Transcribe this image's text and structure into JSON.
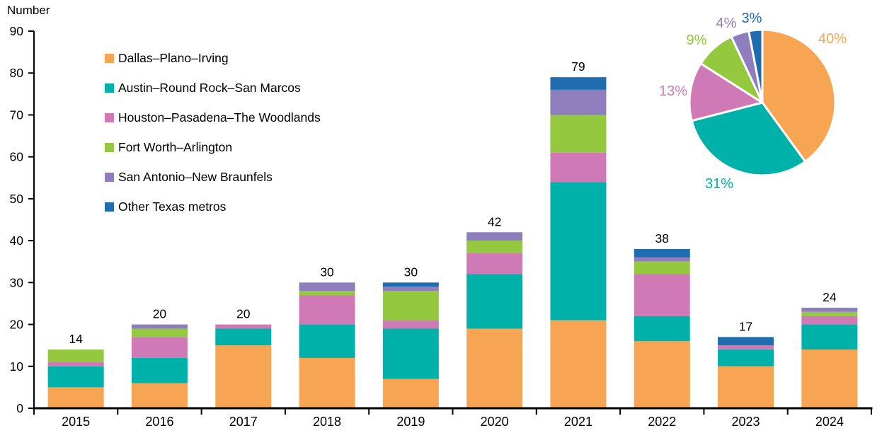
{
  "chart": {
    "y_axis_title": "Number"
  },
  "chart_data": [
    {
      "type": "bar",
      "stacked": true,
      "title": "",
      "xlabel": "",
      "ylabel": "Number",
      "ylim": [
        0,
        90
      ],
      "y_tick_step": 10,
      "grid": false,
      "legend_position": "top-left",
      "categories": [
        "2015",
        "2016",
        "2017",
        "2018",
        "2019",
        "2020",
        "2021",
        "2022",
        "2023",
        "2024"
      ],
      "series": [
        {
          "name": "Dallas–Plano–Irving",
          "color": "#F7A453",
          "values": [
            5,
            6,
            15,
            12,
            7,
            19,
            21,
            16,
            10,
            14
          ]
        },
        {
          "name": "Austin–Round Rock–San Marcos",
          "color": "#00B1A9",
          "values": [
            5,
            6,
            4,
            8,
            12,
            13,
            33,
            6,
            4,
            6
          ]
        },
        {
          "name": "Houston–Pasadena–The Woodlands",
          "color": "#CF7AB6",
          "values": [
            1,
            5,
            1,
            7,
            2,
            5,
            7,
            10,
            1,
            2
          ]
        },
        {
          "name": "Fort Worth–Arlington",
          "color": "#94C83E",
          "values": [
            3,
            2,
            0,
            1,
            7,
            3,
            9,
            3,
            0,
            1
          ]
        },
        {
          "name": "San Antonio–New Braunfels",
          "color": "#8F7EBE",
          "values": [
            0,
            1,
            0,
            2,
            1,
            2,
            6,
            1,
            0,
            1
          ]
        },
        {
          "name": "Other Texas metros",
          "color": "#1F6DAE",
          "values": [
            0,
            0,
            0,
            0,
            1,
            0,
            3,
            2,
            2,
            0
          ]
        }
      ],
      "totals": [
        "14",
        "20",
        "20",
        "30",
        "30",
        "42",
        "79",
        "38",
        "17",
        "24"
      ],
      "y_tick_labels": [
        "0",
        "10",
        "20",
        "30",
        "40",
        "50",
        "60",
        "70",
        "80",
        "90"
      ]
    },
    {
      "type": "pie",
      "labels": [
        "40%",
        "31%",
        "13%",
        "9%",
        "4%",
        "3%"
      ],
      "values": [
        40,
        31,
        13,
        9,
        4,
        3
      ],
      "colors": [
        "#F7A453",
        "#00B1A9",
        "#CF7AB6",
        "#94C83E",
        "#8F7EBE",
        "#1F6DAE"
      ],
      "start_angle_deg": 0,
      "direction": "clockwise",
      "series_names": [
        "Dallas–Plano–Irving",
        "Austin–Round Rock–San Marcos",
        "Houston–Pasadena–The Woodlands",
        "Fort Worth–Arlington",
        "San Antonio–New Braunfels",
        "Other Texas metros"
      ]
    }
  ]
}
